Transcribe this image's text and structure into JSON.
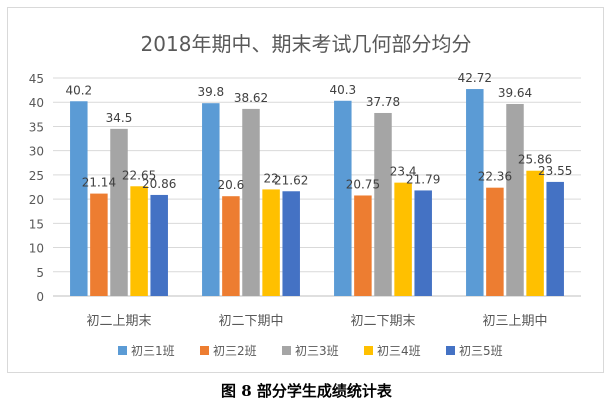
{
  "chart_data": {
    "type": "bar",
    "title": "2018年期中、期末考试几何部分均分",
    "categories": [
      "初二上期末",
      "初二下期中",
      "初二下期末",
      "初三上期中"
    ],
    "series": [
      {
        "name": "初三1班",
        "color": "#5b9bd5",
        "values": [
          40.2,
          39.8,
          40.3,
          42.72
        ],
        "labels": [
          "40.2",
          "39.8",
          "40.3",
          "42.72"
        ]
      },
      {
        "name": "初三2班",
        "color": "#ed7d31",
        "values": [
          21.14,
          20.6,
          20.75,
          22.36
        ],
        "labels": [
          "21.14",
          "20.6",
          "20.75",
          "22.36"
        ]
      },
      {
        "name": "初三3班",
        "color": "#a5a5a5",
        "values": [
          34.5,
          38.62,
          37.78,
          39.64
        ],
        "labels": [
          "34.5",
          "38.62",
          "37.78",
          "39.64"
        ]
      },
      {
        "name": "初三4班",
        "color": "#ffc000",
        "values": [
          22.65,
          22,
          23.4,
          25.86
        ],
        "labels": [
          "22.65",
          "22",
          "23.4",
          "25.86"
        ]
      },
      {
        "name": "初三5班",
        "color": "#4472c4",
        "values": [
          20.86,
          21.62,
          21.79,
          23.55
        ],
        "labels": [
          "20.86",
          "21.62",
          "21.79",
          "23.55"
        ]
      }
    ],
    "ylim": [
      0,
      45
    ],
    "yticks": [
      "0",
      "5",
      "10",
      "15",
      "20",
      "25",
      "30",
      "35",
      "40",
      "45"
    ],
    "grid": true,
    "legend": "bottom"
  },
  "caption": "图 8  部分学生成绩统计表"
}
